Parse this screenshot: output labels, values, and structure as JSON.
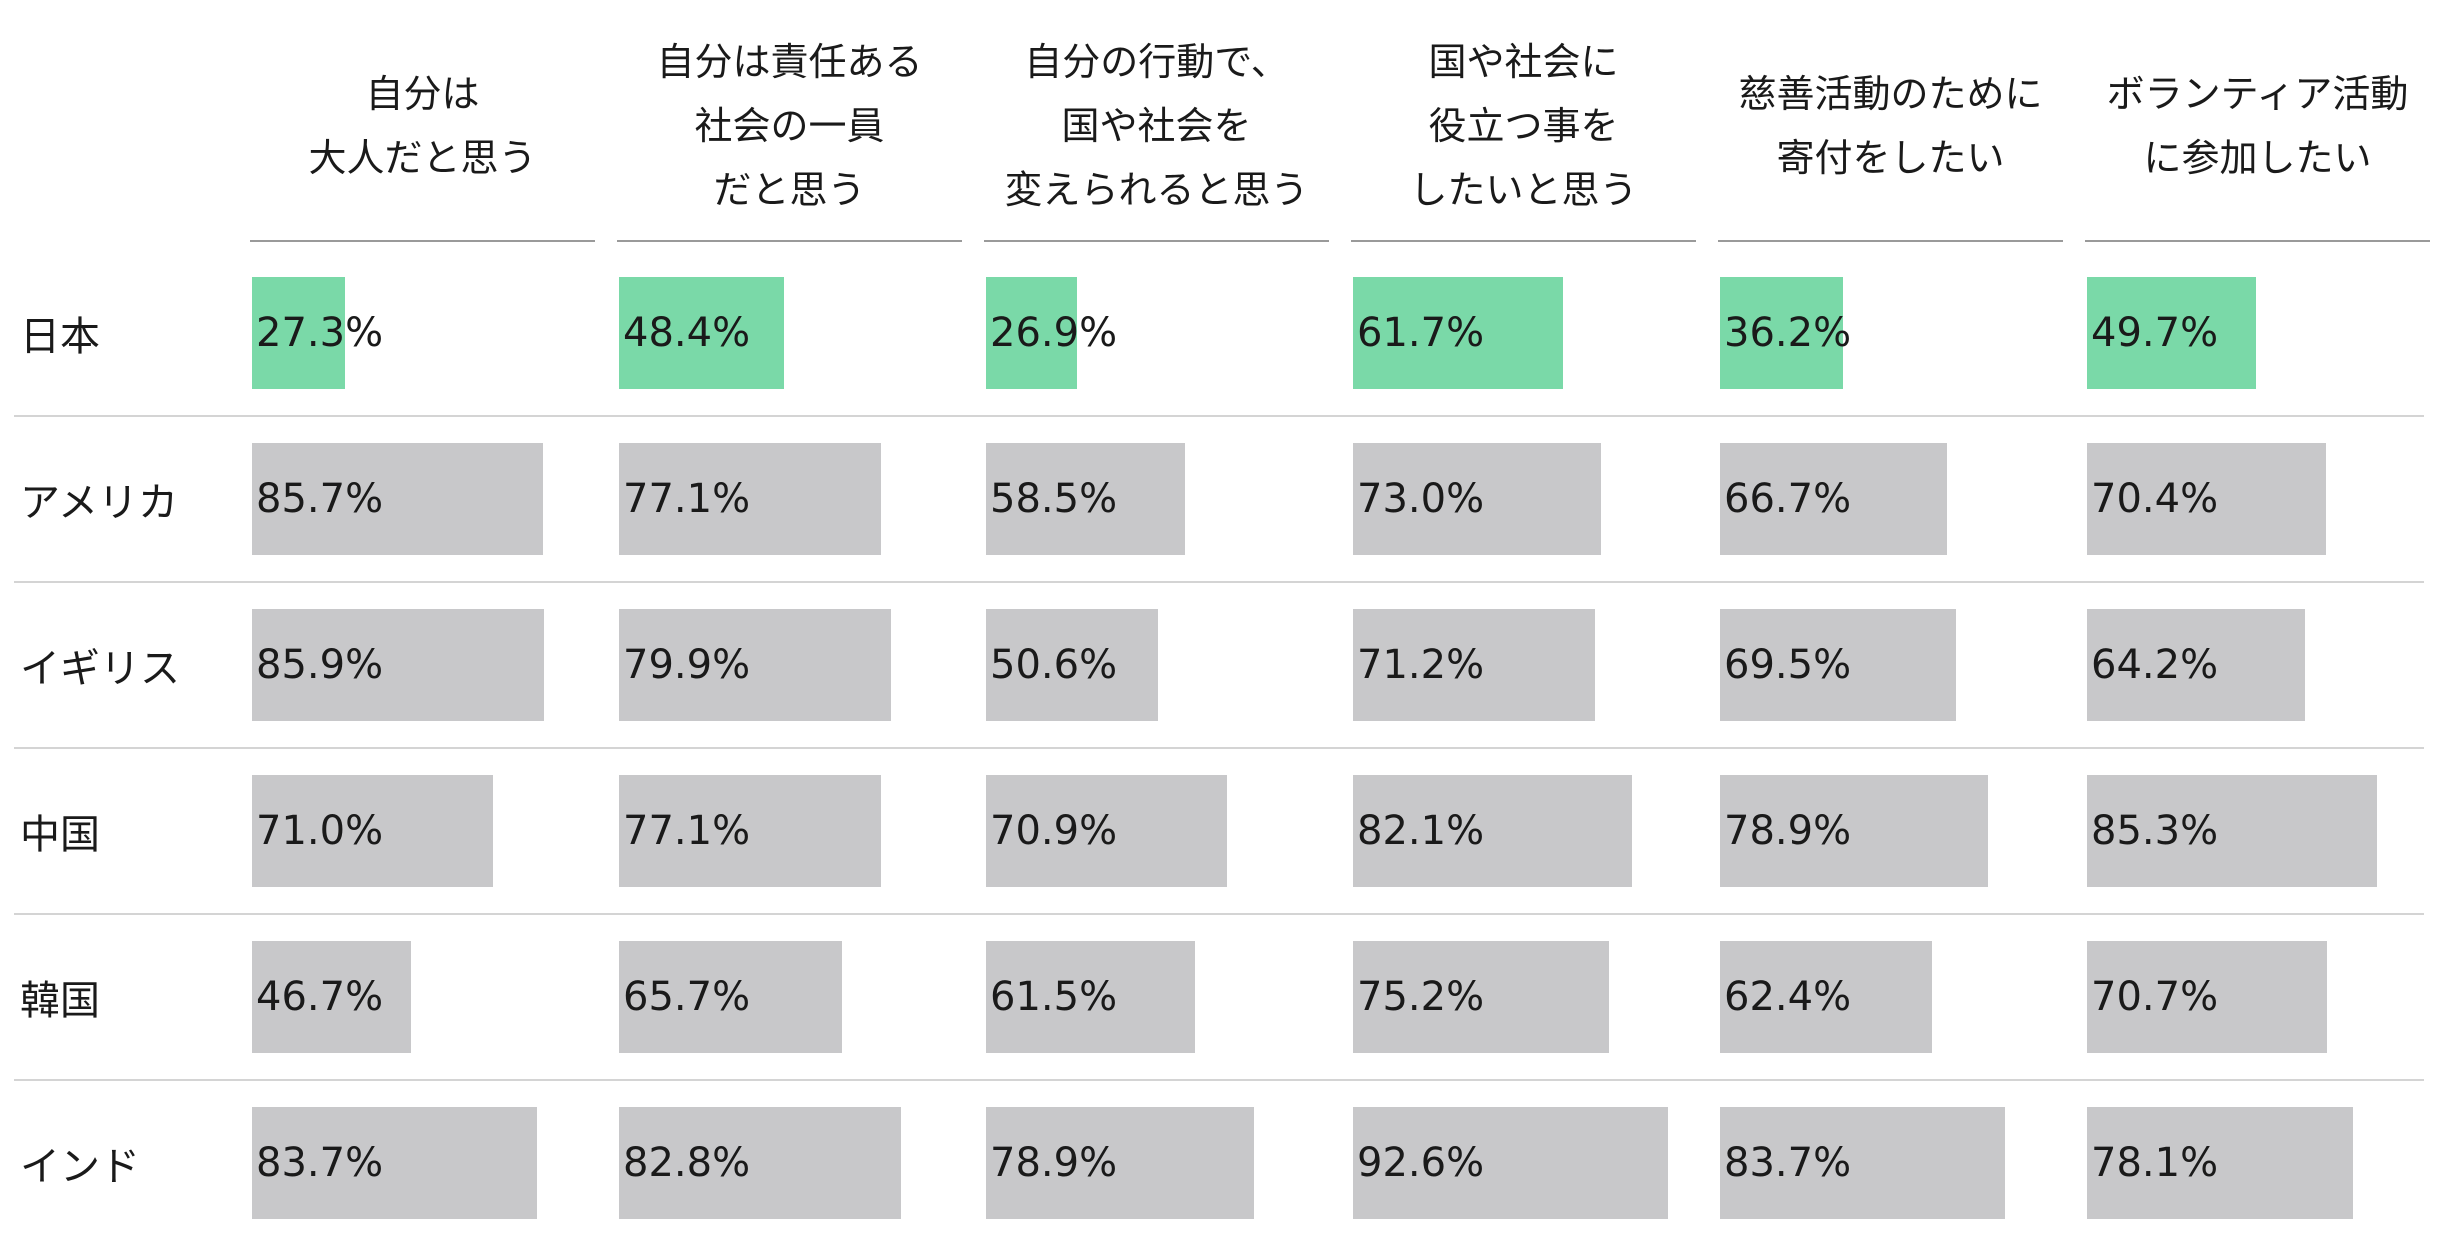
{
  "chart_data": {
    "type": "bar",
    "columns": [
      "自分は\n大人だと思う",
      "自分は責任ある\n社会の一員\nだと思う",
      "自分の行動で、\n国や社会を\n変えられると思う",
      "国や社会に\n役立つ事を\nしたいと思う",
      "慈善活動のために\n寄付をしたい",
      "ボランティア活動\nに参加したい"
    ],
    "rows": [
      {
        "label": "日本",
        "values": [
          27.3,
          48.4,
          26.9,
          61.7,
          36.2,
          49.7
        ],
        "highlight": true
      },
      {
        "label": "アメリカ",
        "values": [
          85.7,
          77.1,
          58.5,
          73.0,
          66.7,
          70.4
        ],
        "highlight": false
      },
      {
        "label": "イギリス",
        "values": [
          85.9,
          79.9,
          50.6,
          71.2,
          69.5,
          64.2
        ],
        "highlight": false
      },
      {
        "label": "中国",
        "values": [
          71.0,
          77.1,
          70.9,
          82.1,
          78.9,
          85.3
        ],
        "highlight": false
      },
      {
        "label": "韓国",
        "values": [
          46.7,
          65.7,
          61.5,
          75.2,
          62.4,
          70.7
        ],
        "highlight": false
      },
      {
        "label": "インド",
        "values": [
          83.7,
          82.8,
          78.9,
          92.6,
          83.7,
          78.1
        ],
        "highlight": false
      }
    ],
    "value_suffix": "%",
    "xlim": [
      0,
      100
    ],
    "colors": {
      "highlight": "#7ad9a8",
      "default": "#c8c8ca"
    }
  }
}
